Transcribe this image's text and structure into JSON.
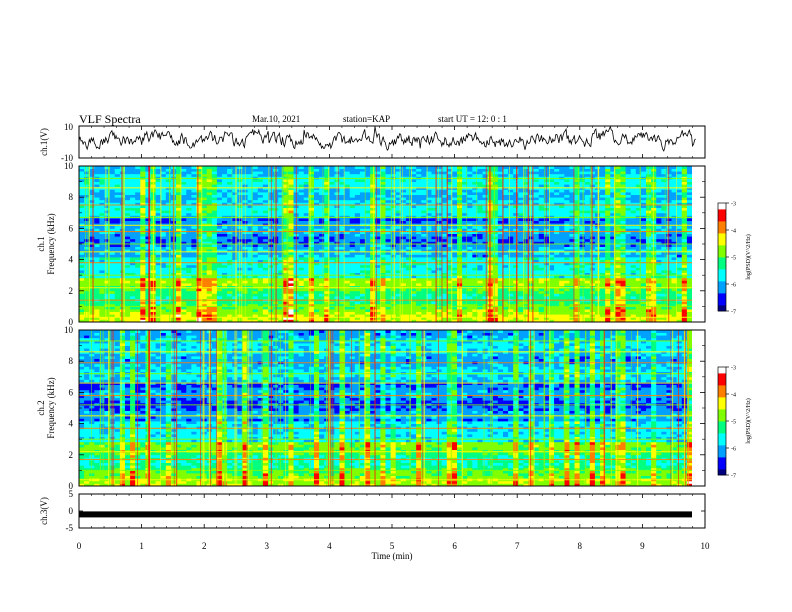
{
  "header": {
    "title": "VLF Spectra",
    "date": "Mar.10, 2021",
    "station": "station=KAP",
    "start_ut": "start UT = 12: 0 : 1"
  },
  "colors": {
    "trace": "#000000",
    "colormap": [
      "#000080",
      "#0000ff",
      "#00a0ff",
      "#00ffff",
      "#00ff80",
      "#80ff00",
      "#ffff00",
      "#ff8000",
      "#ff0000",
      "#ffffff"
    ]
  },
  "chart_data": [
    {
      "type": "line",
      "panel": "ch1-waveform",
      "ylabel": "ch.1(V)",
      "ylim": [
        -10,
        10
      ],
      "yticks": [
        "10",
        "-10"
      ],
      "xlim": [
        0,
        10
      ],
      "description_of_signal": "noisy trace centred near 0 V, amplitude mostly between -5 and +5 V",
      "y": [
        1.2,
        2.0,
        0.5,
        3.1,
        1.8,
        -0.4,
        2.6,
        0.9,
        3.5,
        1.1,
        2.2,
        -0.8,
        1.7,
        2.9,
        0.3,
        1.5,
        3.0,
        0.7,
        2.4,
        1.0,
        -1.2,
        2.8,
        1.9,
        0.4,
        3.3,
        1.6,
        2.1,
        -0.2,
        2.7,
        1.3
      ]
    },
    {
      "type": "heatmap",
      "panel": "ch1-spectrogram",
      "ylabel": "ch.1 Frequency (kHz)",
      "ylim": [
        0,
        10
      ],
      "yticks": [
        "0",
        "2",
        "4",
        "6",
        "8",
        "10"
      ],
      "xlim": [
        0,
        9.8
      ],
      "colorbar": {
        "label": "log(PSD)(V^2/Hz)",
        "range": [
          -7,
          -3
        ],
        "ticks": [
          "-3",
          "-4",
          "-5",
          "-6",
          "-7"
        ]
      }
    },
    {
      "type": "heatmap",
      "panel": "ch2-spectrogram",
      "ylabel": "ch.2 Frequency (kHz)",
      "ylim": [
        0,
        10
      ],
      "yticks": [
        "0",
        "2",
        "4",
        "6",
        "8",
        "10"
      ],
      "xlim": [
        0,
        9.8
      ],
      "colorbar": {
        "label": "log(PSD)(V^2/Hz)",
        "range": [
          -7,
          -3
        ],
        "ticks": [
          "-3",
          "-4",
          "-5",
          "-6",
          "-7"
        ]
      }
    },
    {
      "type": "line",
      "panel": "ch3-waveform",
      "ylabel": "ch.3(V)",
      "ylim": [
        -5,
        5
      ],
      "yticks": [
        "5",
        "0",
        "-5"
      ],
      "xlim": [
        0,
        10
      ],
      "y_level": -1
    }
  ],
  "xaxis": {
    "label": "Time (min)",
    "range": [
      0,
      10
    ],
    "ticks": [
      "0",
      "1",
      "2",
      "3",
      "4",
      "5",
      "6",
      "7",
      "8",
      "9",
      "10"
    ]
  }
}
